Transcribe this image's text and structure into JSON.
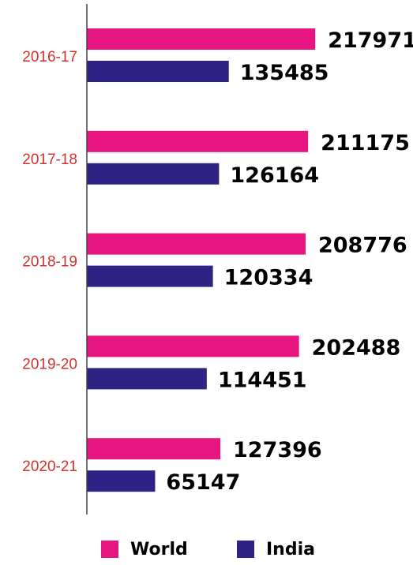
{
  "chart_data": {
    "type": "barh",
    "categories": [
      "2016-17",
      "2017-18",
      "2018-19",
      "2019-20",
      "2020-21"
    ],
    "series": [
      {
        "name": "World",
        "color": "#e6157f",
        "values": [
          217971,
          211175,
          208776,
          202488,
          127396
        ]
      },
      {
        "name": "India",
        "color": "#2e2385",
        "values": [
          135485,
          126164,
          120334,
          114451,
          65147
        ]
      }
    ],
    "xlim": [
      0,
      300000
    ],
    "legend": "bottom"
  }
}
